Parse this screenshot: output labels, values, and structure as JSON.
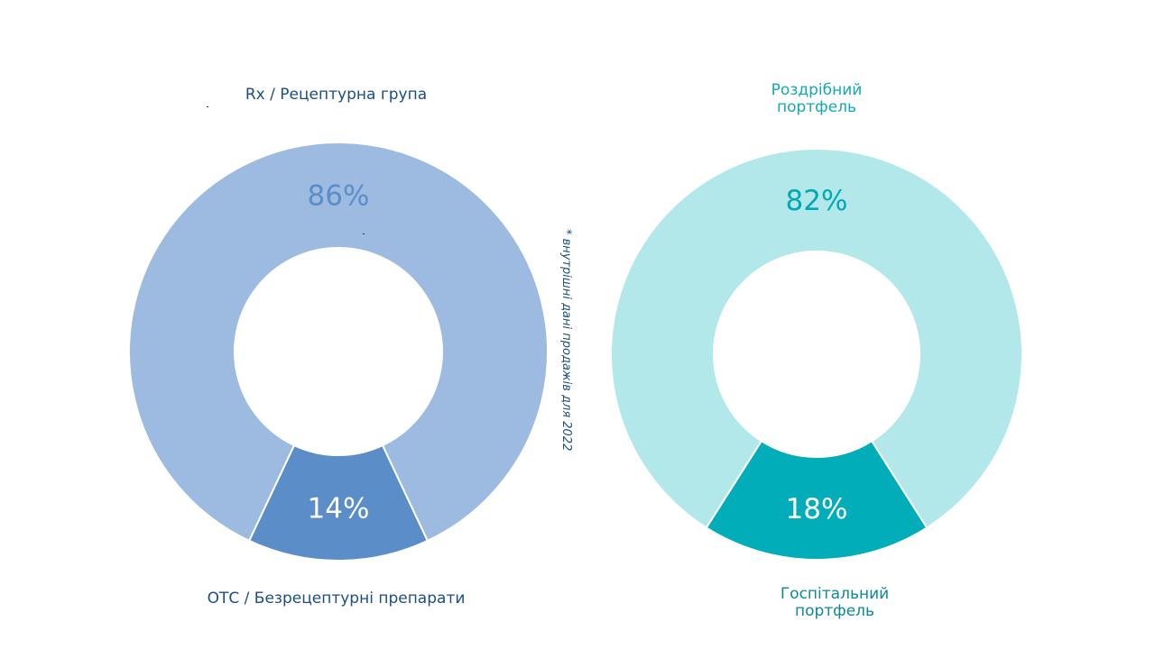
{
  "chart_data": [
    {
      "type": "pie",
      "categories": [
        "Rx / Рецептурна група",
        "ОТС / Безрецептурні препарати"
      ],
      "values": [
        86,
        14
      ],
      "value_labels": [
        "86%",
        "14%"
      ],
      "colors": [
        "#9dbbe1",
        "#5b8dc9"
      ],
      "label_colors": [
        "#5b8dc9",
        "#ffffff"
      ],
      "legend": "none"
    },
    {
      "type": "pie",
      "categories": [
        "Роздрібний\nпортфель",
        "Госпітальний\nпортфель"
      ],
      "values": [
        82,
        18
      ],
      "value_labels": [
        "82%",
        "18%"
      ],
      "colors": [
        "#b3e8eb",
        "#00adb9"
      ],
      "label_colors": [
        "#00a8b4",
        "#ffffff"
      ],
      "legend": "none"
    }
  ],
  "footnote": "* внутрішні дані продажів для 2022"
}
